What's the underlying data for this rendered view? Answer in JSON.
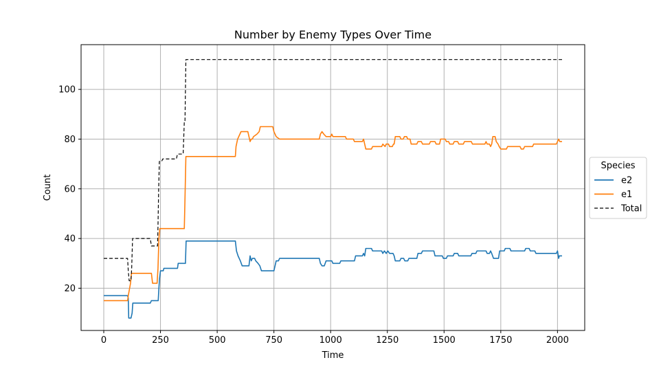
{
  "chart_data": {
    "type": "line",
    "title": "Number by Enemy Types Over Time",
    "xlabel": "Time",
    "ylabel": "Count",
    "xlim": [
      -100,
      2120
    ],
    "ylim": [
      3,
      118
    ],
    "xticks": [
      0,
      250,
      500,
      750,
      1000,
      1250,
      1500,
      1750,
      2000
    ],
    "yticks": [
      20,
      40,
      60,
      80,
      100
    ],
    "grid": true,
    "legend": {
      "title": "Species",
      "placement": "outside-right"
    },
    "series": [
      {
        "name": "e2",
        "color": "#1f77b4",
        "dash": "",
        "points": [
          [
            0,
            17
          ],
          [
            105,
            17
          ],
          [
            108,
            16
          ],
          [
            110,
            8
          ],
          [
            120,
            8
          ],
          [
            125,
            10
          ],
          [
            128,
            14
          ],
          [
            205,
            14
          ],
          [
            210,
            15
          ],
          [
            240,
            15
          ],
          [
            243,
            20
          ],
          [
            246,
            24
          ],
          [
            250,
            27
          ],
          [
            262,
            27
          ],
          [
            265,
            28
          ],
          [
            325,
            28
          ],
          [
            328,
            30
          ],
          [
            360,
            30
          ],
          [
            363,
            39
          ],
          [
            580,
            39
          ],
          [
            585,
            35
          ],
          [
            592,
            33
          ],
          [
            602,
            31
          ],
          [
            610,
            29
          ],
          [
            640,
            29
          ],
          [
            645,
            33
          ],
          [
            650,
            31
          ],
          [
            655,
            32
          ],
          [
            665,
            32
          ],
          [
            670,
            31
          ],
          [
            680,
            30
          ],
          [
            688,
            29
          ],
          [
            695,
            27
          ],
          [
            750,
            27
          ],
          [
            755,
            29
          ],
          [
            760,
            31
          ],
          [
            770,
            31
          ],
          [
            775,
            32
          ],
          [
            950,
            32
          ],
          [
            955,
            30
          ],
          [
            962,
            29
          ],
          [
            972,
            29
          ],
          [
            980,
            31
          ],
          [
            1005,
            31
          ],
          [
            1010,
            30
          ],
          [
            1040,
            30
          ],
          [
            1045,
            31
          ],
          [
            1105,
            31
          ],
          [
            1110,
            33
          ],
          [
            1140,
            33
          ],
          [
            1145,
            34
          ],
          [
            1150,
            33
          ],
          [
            1155,
            36
          ],
          [
            1180,
            36
          ],
          [
            1185,
            35
          ],
          [
            1225,
            35
          ],
          [
            1230,
            34
          ],
          [
            1237,
            35
          ],
          [
            1245,
            34
          ],
          [
            1252,
            35
          ],
          [
            1260,
            34
          ],
          [
            1275,
            34
          ],
          [
            1280,
            33
          ],
          [
            1285,
            31
          ],
          [
            1305,
            31
          ],
          [
            1310,
            32
          ],
          [
            1322,
            32
          ],
          [
            1327,
            31
          ],
          [
            1340,
            31
          ],
          [
            1345,
            32
          ],
          [
            1380,
            32
          ],
          [
            1385,
            34
          ],
          [
            1400,
            34
          ],
          [
            1405,
            35
          ],
          [
            1455,
            35
          ],
          [
            1460,
            33
          ],
          [
            1492,
            33
          ],
          [
            1497,
            32
          ],
          [
            1510,
            32
          ],
          [
            1515,
            33
          ],
          [
            1540,
            33
          ],
          [
            1545,
            34
          ],
          [
            1560,
            34
          ],
          [
            1565,
            33
          ],
          [
            1618,
            33
          ],
          [
            1623,
            34
          ],
          [
            1640,
            34
          ],
          [
            1645,
            35
          ],
          [
            1685,
            35
          ],
          [
            1690,
            34
          ],
          [
            1700,
            34
          ],
          [
            1705,
            35
          ],
          [
            1710,
            34
          ],
          [
            1718,
            32
          ],
          [
            1740,
            32
          ],
          [
            1745,
            35
          ],
          [
            1765,
            35
          ],
          [
            1770,
            36
          ],
          [
            1790,
            36
          ],
          [
            1795,
            35
          ],
          [
            1855,
            35
          ],
          [
            1860,
            36
          ],
          [
            1875,
            36
          ],
          [
            1880,
            35
          ],
          [
            1900,
            35
          ],
          [
            1905,
            34
          ],
          [
            1995,
            34
          ],
          [
            2000,
            35
          ],
          [
            2005,
            32
          ],
          [
            2008,
            33
          ],
          [
            2020,
            33
          ]
        ]
      },
      {
        "name": "e1",
        "color": "#ff7f0e",
        "dash": "",
        "points": [
          [
            0,
            15
          ],
          [
            105,
            15
          ],
          [
            108,
            17
          ],
          [
            112,
            19
          ],
          [
            118,
            22
          ],
          [
            122,
            26
          ],
          [
            210,
            26
          ],
          [
            215,
            22
          ],
          [
            235,
            22
          ],
          [
            239,
            28
          ],
          [
            243,
            40
          ],
          [
            247,
            44
          ],
          [
            355,
            44
          ],
          [
            358,
            56
          ],
          [
            362,
            73
          ],
          [
            580,
            73
          ],
          [
            583,
            77
          ],
          [
            590,
            80
          ],
          [
            600,
            82
          ],
          [
            605,
            83
          ],
          [
            635,
            83
          ],
          [
            640,
            81
          ],
          [
            645,
            79
          ],
          [
            650,
            80
          ],
          [
            655,
            80
          ],
          [
            660,
            81
          ],
          [
            675,
            82
          ],
          [
            685,
            83
          ],
          [
            690,
            85
          ],
          [
            745,
            85
          ],
          [
            750,
            83
          ],
          [
            755,
            82
          ],
          [
            760,
            81
          ],
          [
            775,
            80
          ],
          [
            950,
            80
          ],
          [
            955,
            82
          ],
          [
            962,
            83
          ],
          [
            970,
            82
          ],
          [
            980,
            81
          ],
          [
            1000,
            81
          ],
          [
            1005,
            82
          ],
          [
            1010,
            81
          ],
          [
            1065,
            81
          ],
          [
            1070,
            80
          ],
          [
            1100,
            80
          ],
          [
            1105,
            79
          ],
          [
            1140,
            79
          ],
          [
            1145,
            80
          ],
          [
            1150,
            78
          ],
          [
            1155,
            76
          ],
          [
            1180,
            76
          ],
          [
            1185,
            77
          ],
          [
            1225,
            77
          ],
          [
            1230,
            78
          ],
          [
            1240,
            77
          ],
          [
            1245,
            78
          ],
          [
            1255,
            78
          ],
          [
            1260,
            77
          ],
          [
            1272,
            77
          ],
          [
            1277,
            78
          ],
          [
            1280,
            78
          ],
          [
            1285,
            81
          ],
          [
            1305,
            81
          ],
          [
            1310,
            80
          ],
          [
            1320,
            80
          ],
          [
            1325,
            81
          ],
          [
            1335,
            81
          ],
          [
            1340,
            80
          ],
          [
            1350,
            80
          ],
          [
            1355,
            78
          ],
          [
            1380,
            78
          ],
          [
            1385,
            79
          ],
          [
            1400,
            79
          ],
          [
            1405,
            78
          ],
          [
            1435,
            78
          ],
          [
            1440,
            79
          ],
          [
            1460,
            79
          ],
          [
            1465,
            78
          ],
          [
            1480,
            78
          ],
          [
            1485,
            80
          ],
          [
            1505,
            80
          ],
          [
            1510,
            79
          ],
          [
            1520,
            79
          ],
          [
            1525,
            78
          ],
          [
            1540,
            78
          ],
          [
            1545,
            79
          ],
          [
            1560,
            79
          ],
          [
            1565,
            78
          ],
          [
            1585,
            78
          ],
          [
            1590,
            79
          ],
          [
            1620,
            79
          ],
          [
            1625,
            78
          ],
          [
            1680,
            78
          ],
          [
            1685,
            79
          ],
          [
            1690,
            78
          ],
          [
            1700,
            78
          ],
          [
            1705,
            77
          ],
          [
            1710,
            78
          ],
          [
            1715,
            81
          ],
          [
            1725,
            81
          ],
          [
            1730,
            79
          ],
          [
            1738,
            78
          ],
          [
            1743,
            77
          ],
          [
            1750,
            76
          ],
          [
            1775,
            76
          ],
          [
            1780,
            77
          ],
          [
            1835,
            77
          ],
          [
            1840,
            76
          ],
          [
            1850,
            76
          ],
          [
            1855,
            77
          ],
          [
            1890,
            77
          ],
          [
            1895,
            78
          ],
          [
            1995,
            78
          ],
          [
            2000,
            79
          ],
          [
            2005,
            80
          ],
          [
            2010,
            79
          ],
          [
            2020,
            79
          ]
        ]
      },
      {
        "name": "Total",
        "color": "#000000",
        "dash": "5,3",
        "points": [
          [
            0,
            32
          ],
          [
            105,
            32
          ],
          [
            108,
            27
          ],
          [
            112,
            23
          ],
          [
            120,
            23
          ],
          [
            123,
            28
          ],
          [
            127,
            40
          ],
          [
            205,
            40
          ],
          [
            210,
            37
          ],
          [
            237,
            37
          ],
          [
            239,
            45
          ],
          [
            242,
            60
          ],
          [
            245,
            71
          ],
          [
            255,
            71
          ],
          [
            260,
            72
          ],
          [
            320,
            72
          ],
          [
            325,
            74
          ],
          [
            350,
            74
          ],
          [
            355,
            87
          ],
          [
            358,
            87
          ],
          [
            362,
            112
          ],
          [
            2020,
            112
          ]
        ]
      }
    ]
  }
}
